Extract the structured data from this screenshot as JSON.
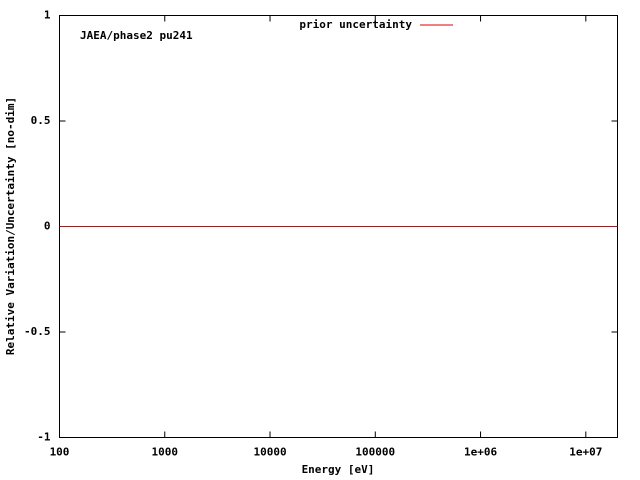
{
  "chart_data": {
    "type": "line",
    "annotation": "JAEA/phase2 pu241",
    "xlabel": "Energy [eV]",
    "ylabel": "Relative Variation/Uncertainty [no-dim]",
    "x": [
      100,
      20000000
    ],
    "series": [
      {
        "name": "prior uncertainty",
        "color": "#e00000",
        "values": [
          0,
          0
        ]
      }
    ],
    "xscale": "log",
    "xlim": [
      100,
      20000000
    ],
    "xticks": [
      100,
      1000,
      10000,
      100000,
      {
        "value": 1000000,
        "label": "1e+06"
      },
      {
        "value": 10000000,
        "label": "1e+07"
      }
    ],
    "ylim": [
      -1,
      1
    ],
    "yticks": [
      -1,
      -0.5,
      0,
      0.5,
      1
    ],
    "grid": false,
    "legend": "top"
  }
}
